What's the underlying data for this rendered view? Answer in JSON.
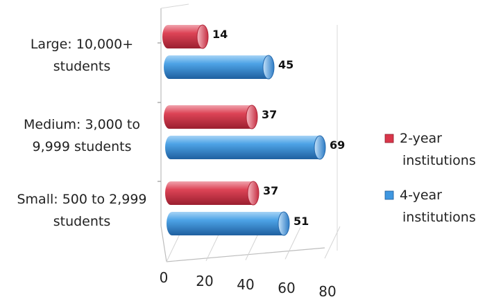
{
  "chart_data": {
    "type": "bar",
    "orientation": "horizontal",
    "style": "3d-cylinder",
    "categories": [
      "Large: 10,000+ students",
      "Medium: 3,000 to 9,999 students",
      "Small: 500 to 2,999 students"
    ],
    "category_lines": [
      [
        "Large: 10,000+",
        "students"
      ],
      [
        "Medium: 3,000 to",
        "9,999 students"
      ],
      [
        "Small: 500 to 2,999",
        "students"
      ]
    ],
    "series": [
      {
        "name": "2-year institutions",
        "legend_lines": [
          "2-year",
          "institutions"
        ],
        "color": "#d9364a",
        "values": [
          14,
          37,
          37
        ]
      },
      {
        "name": "4-year institutions",
        "legend_lines": [
          "4-year",
          "institutions"
        ],
        "color": "#3f97e0",
        "values": [
          45,
          69,
          51
        ]
      }
    ],
    "xlim": [
      0,
      80
    ],
    "xticks": [
      "0",
      "20",
      "40",
      "60",
      "80"
    ],
    "grid": true,
    "legend": "right"
  }
}
